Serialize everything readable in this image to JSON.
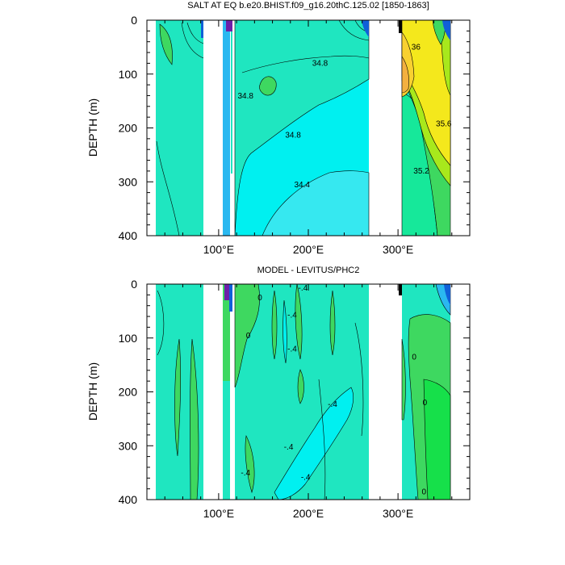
{
  "figure": {
    "panels": [
      {
        "title": "SALT AT EQ b.e20.BHIST.f09_g16.20thC.125.02 [1850-1863]"
      },
      {
        "title": "MODEL - LEVITUS/PHC2"
      }
    ]
  },
  "chart_data": [
    {
      "type": "heatmap",
      "title": "SALT AT EQ b.e20.BHIST.f09_g16.20thC.125.02 [1850-1863]",
      "xlabel": "",
      "ylabel": "DEPTH (m)",
      "xlim": [
        20,
        380
      ],
      "ylim": [
        400,
        0
      ],
      "x_ticks": [
        {
          "value": 100,
          "label": "100°E"
        },
        {
          "value": 200,
          "label": "200°E"
        },
        {
          "value": 300,
          "label": "300°E"
        }
      ],
      "y_ticks": [
        0,
        100,
        200,
        300,
        400
      ],
      "ocean_segments_lon": [
        [
          45,
          98
        ],
        [
          120,
          280
        ],
        [
          315,
          370
        ]
      ],
      "contour_labels": [
        {
          "text": "34.8",
          "lon": 213,
          "depth": 85
        },
        {
          "text": "34.8",
          "lon": 130,
          "depth": 145
        },
        {
          "text": "34.8",
          "lon": 183,
          "depth": 218
        },
        {
          "text": "34.4",
          "lon": 193,
          "depth": 310
        },
        {
          "text": "36",
          "lon": 320,
          "depth": 55
        },
        {
          "text": "35.6",
          "lon": 351,
          "depth": 197
        },
        {
          "text": "35.2",
          "lon": 326,
          "depth": 285
        }
      ],
      "colors": {
        "teal": "#1fe6c0",
        "cyan": "#00f0f0",
        "light_cyan": "#36e8f0",
        "sky": "#2ab8f0",
        "blue": "#1060d8",
        "purple": "#6c20a8",
        "green": "#3ed860",
        "mint": "#16e89a",
        "lime": "#a8e81c",
        "yellow": "#f4e81c",
        "gold": "#f8d030",
        "orange": "#f4b040"
      }
    },
    {
      "type": "heatmap",
      "title": "MODEL - LEVITUS/PHC2",
      "xlabel": "",
      "ylabel": "DEPTH (m)",
      "xlim": [
        20,
        380
      ],
      "ylim": [
        400,
        0
      ],
      "x_ticks": [
        {
          "value": 100,
          "label": "100°E"
        },
        {
          "value": 200,
          "label": "200°E"
        },
        {
          "value": 300,
          "label": "300°E"
        }
      ],
      "y_ticks": [
        0,
        100,
        200,
        300,
        400
      ],
      "ocean_segments_lon": [
        [
          45,
          98
        ],
        [
          120,
          280
        ],
        [
          315,
          370
        ]
      ],
      "contour_labels": [
        {
          "text": "0",
          "lon": 146,
          "depth": 30
        },
        {
          "text": "-.4",
          "lon": 194,
          "depth": 12
        },
        {
          "text": "-.4",
          "lon": 182,
          "depth": 62
        },
        {
          "text": "-.4",
          "lon": 182,
          "depth": 125
        },
        {
          "text": "0",
          "lon": 133,
          "depth": 100
        },
        {
          "text": "0",
          "lon": 318,
          "depth": 140
        },
        {
          "text": "0",
          "lon": 330,
          "depth": 225
        },
        {
          "text": "-.4",
          "lon": 227,
          "depth": 228
        },
        {
          "text": "-.4",
          "lon": 178,
          "depth": 307
        },
        {
          "text": "-.4",
          "lon": 197,
          "depth": 363
        },
        {
          "text": "-.4",
          "lon": 130,
          "depth": 355
        },
        {
          "text": "0",
          "lon": 329,
          "depth": 390
        }
      ]
    }
  ]
}
